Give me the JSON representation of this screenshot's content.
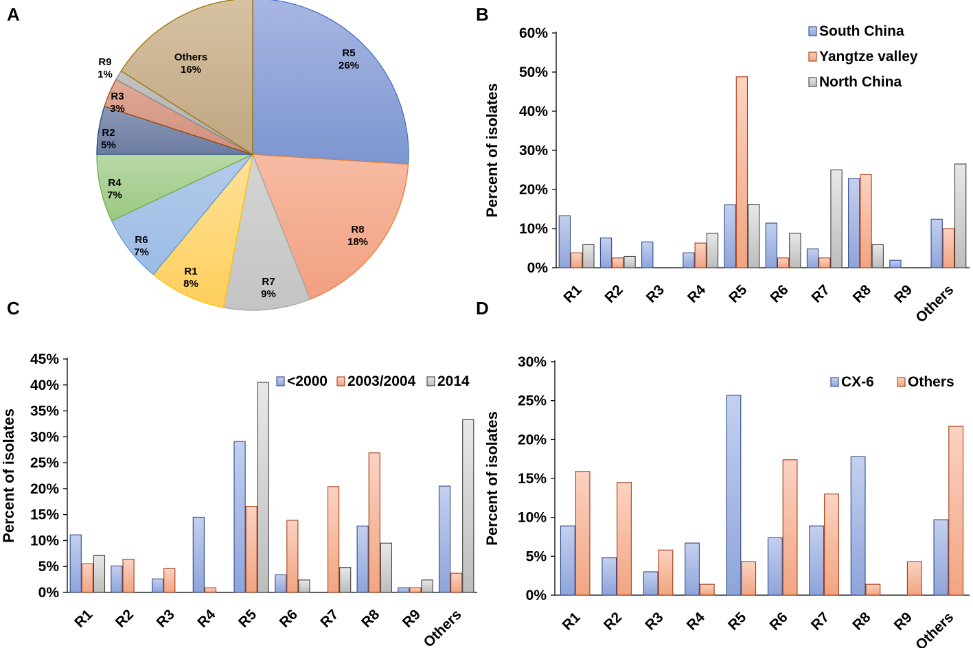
{
  "palette": {
    "south_china": "#a8b8e4",
    "south_china_edge": "#2f4a86",
    "yangtze": "#f6b9a0",
    "yangtze_edge": "#a53a12",
    "north_china": "#d4d4d4",
    "north_china_edge": "#3f3f3f",
    "axis": "#000000"
  },
  "chart_data": [
    {
      "panel": "A",
      "type": "pie",
      "slices": [
        {
          "label": "R5",
          "value": 26,
          "text": "26%",
          "fill_top": "#a8b6e2",
          "fill_bottom": "#7c96d0",
          "stroke": "#4472c4"
        },
        {
          "label": "R8",
          "value": 18,
          "text": "18%",
          "fill_top": "#f6bba3",
          "fill_bottom": "#f2a080",
          "stroke": "#ed7d31"
        },
        {
          "label": "R7",
          "value": 9,
          "text": "9%",
          "fill_top": "#d4d4d4",
          "fill_bottom": "#c4c4c4",
          "stroke": "#a5a5a5"
        },
        {
          "label": "R1",
          "value": 8,
          "text": "8%",
          "fill_top": "#ffe19a",
          "fill_bottom": "#ffcf5c",
          "stroke": "#ffc000"
        },
        {
          "label": "R6",
          "value": 7,
          "text": "7%",
          "fill_top": "#b4cbea",
          "fill_bottom": "#9cbbe6",
          "stroke": "#5b9bd5"
        },
        {
          "label": "R4",
          "value": 7,
          "text": "7%",
          "fill_top": "#b8d9a6",
          "fill_bottom": "#9cc882",
          "stroke": "#70ad47"
        },
        {
          "label": "R2",
          "value": 5,
          "text": "5%",
          "fill_top": "#8c9ab8",
          "fill_bottom": "#6c7ca2",
          "stroke": "#264478"
        },
        {
          "label": "R3",
          "value": 3,
          "text": "3%",
          "fill_top": "#e0a999",
          "fill_bottom": "#d18f7a",
          "stroke": "#9e480e"
        },
        {
          "label": "R9",
          "value": 1,
          "text": "1%",
          "fill_top": "#c2c2c2",
          "fill_bottom": "#b0b0b0",
          "stroke": "#8a8a8a"
        },
        {
          "label": "Others",
          "value": 16,
          "text": "16%",
          "fill_top": "#d6c2a2",
          "fill_bottom": "#c0a682",
          "stroke": "#997300"
        }
      ]
    },
    {
      "panel": "B",
      "type": "bar",
      "ylabel": "Percent of isolates",
      "ylim": [
        0,
        60
      ],
      "yticks": [
        0,
        10,
        20,
        30,
        40,
        50,
        60
      ],
      "categories": [
        "R1",
        "R2",
        "R3",
        "R4",
        "R5",
        "R6",
        "R7",
        "R8",
        "R9",
        "Others"
      ],
      "legend_position": "top-right",
      "series": [
        {
          "name": "South China",
          "key": "south_china",
          "values": [
            13.3,
            7.6,
            6.6,
            3.8,
            16.1,
            11.4,
            4.8,
            22.8,
            1.9,
            12.4
          ]
        },
        {
          "name": "Yangtze valley",
          "key": "yangtze",
          "values": [
            3.8,
            2.5,
            0,
            6.3,
            48.8,
            2.5,
            2.5,
            23.8,
            0,
            10.0
          ]
        },
        {
          "name": "North China",
          "key": "north_china",
          "values": [
            5.9,
            2.9,
            0,
            8.8,
            16.2,
            8.8,
            25.0,
            5.9,
            0,
            26.5
          ]
        }
      ]
    },
    {
      "panel": "C",
      "type": "bar",
      "ylabel": "Percent of isolates",
      "ylim": [
        0,
        45
      ],
      "yticks": [
        0,
        5,
        10,
        15,
        20,
        25,
        30,
        35,
        40,
        45
      ],
      "categories": [
        "R1",
        "R2",
        "R3",
        "R4",
        "R5",
        "R6",
        "R7",
        "R8",
        "R9",
        "Others"
      ],
      "legend_position": "top-right",
      "series": [
        {
          "name": "<2000",
          "key": "south_china",
          "values": [
            11.1,
            5.1,
            2.6,
            14.5,
            29.1,
            3.4,
            0,
            12.8,
            0.9,
            20.5
          ]
        },
        {
          "name": "2003/2004",
          "key": "yangtze",
          "values": [
            5.5,
            6.4,
            4.6,
            0.9,
            16.6,
            13.9,
            20.4,
            26.9,
            0.9,
            3.7
          ]
        },
        {
          "name": "2014",
          "key": "north_china",
          "values": [
            7.1,
            0,
            0,
            0,
            40.5,
            2.4,
            4.8,
            9.5,
            2.4,
            33.3
          ]
        }
      ]
    },
    {
      "panel": "D",
      "type": "bar",
      "ylabel": "Percent of isolates",
      "ylim": [
        0,
        30
      ],
      "yticks": [
        0,
        5,
        10,
        15,
        20,
        25,
        30
      ],
      "categories": [
        "R1",
        "R2",
        "R3",
        "R4",
        "R5",
        "R6",
        "R7",
        "R8",
        "R9",
        "Others"
      ],
      "legend_position": "top-right",
      "series": [
        {
          "name": "CX-6",
          "key": "south_china",
          "values": [
            8.9,
            4.8,
            3.0,
            6.7,
            25.7,
            7.4,
            8.9,
            17.8,
            0,
            9.7
          ]
        },
        {
          "name": "Others",
          "key": "yangtze",
          "values": [
            15.9,
            14.5,
            5.8,
            1.4,
            4.3,
            17.4,
            13.0,
            1.4,
            4.3,
            21.7
          ]
        }
      ]
    }
  ]
}
